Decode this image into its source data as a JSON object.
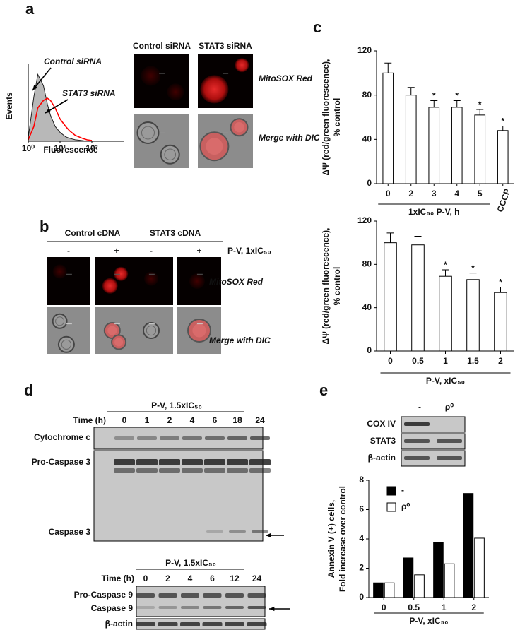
{
  "panel_labels": [
    "a",
    "b",
    "c",
    "d",
    "e"
  ],
  "panel_a": {
    "image_columns": [
      "Control siRNA",
      "STAT3 siRNA"
    ],
    "image_rows": [
      "MitoSOX Red",
      "Merge with DIC"
    ]
  },
  "panel_b": {
    "image_columns": [
      "Control cDNA",
      "STAT3 cDNA"
    ],
    "treatment_signs": [
      "-",
      "+",
      "-",
      "+"
    ],
    "treatment": "P-V, 1xIC₅₀",
    "image_rows": [
      "MitoSOX Red",
      "Merge with DIC"
    ]
  },
  "panel_d": {
    "blots": [
      {
        "treatment": "P-V, 1.5xIC₅₀",
        "time_label": "Time (h)",
        "times": [
          "0",
          "1",
          "2",
          "4",
          "6",
          "18",
          "24"
        ],
        "rows": [
          "Cytochrome c",
          "Pro-Caspase 3",
          "Caspase 3"
        ]
      },
      {
        "treatment": "P-V, 1.5xIC₅₀",
        "time_label": "Time (h)",
        "times": [
          "0",
          "2",
          "4",
          "6",
          "12",
          "24"
        ],
        "rows": [
          "Pro-Caspase 9",
          "Caspase 9",
          "β-actin"
        ]
      }
    ]
  },
  "panel_e": {
    "lanes": [
      "-",
      "ρ⁰"
    ],
    "rows": [
      "COX IV",
      "STAT3",
      "β-actin"
    ]
  },
  "chart_data": [
    {
      "type": "line",
      "xlabel": "Fluorescence",
      "ylabel": "Events",
      "xscale": "log",
      "x": [
        1,
        1.5,
        2,
        3,
        4,
        5,
        7,
        10,
        15,
        20,
        30,
        50,
        70,
        100
      ],
      "xlim": [
        1,
        1000
      ],
      "xticks": [
        {
          "value": 1,
          "label": "10⁰"
        },
        {
          "value": 10,
          "label": "10¹"
        },
        {
          "value": 100,
          "label": "10²"
        }
      ],
      "ylim": [
        0,
        100
      ],
      "series": [
        {
          "name": "Control siRNA",
          "color": "#b8b8b8",
          "fill": true,
          "values": [
            5,
            60,
            90,
            75,
            50,
            35,
            20,
            12,
            6,
            4,
            2,
            1,
            0,
            0
          ]
        },
        {
          "name": "STAT3 siRNA",
          "color": "#ff0000",
          "fill": false,
          "values": [
            2,
            20,
            45,
            55,
            58,
            55,
            45,
            30,
            20,
            14,
            8,
            4,
            2,
            1
          ]
        }
      ]
    },
    {
      "type": "bar",
      "ylabel": [
        "ΔΨ (red/green fluorescence),",
        "% control"
      ],
      "xlabel": "1xIC₅₀ P-V, h",
      "categories": [
        "0",
        "2",
        "3",
        "4",
        "5",
        "CCCP"
      ],
      "values": [
        100,
        80,
        69,
        69,
        62,
        48
      ],
      "errors": [
        9,
        7,
        6,
        6,
        5,
        4
      ],
      "significance": [
        null,
        null,
        "*",
        "*",
        "*",
        "*"
      ],
      "color": "#ffffff",
      "ylim": [
        0,
        120
      ],
      "yticks": [
        0,
        40,
        80,
        120
      ]
    },
    {
      "type": "bar",
      "ylabel": [
        "ΔΨ (red/green fluorescence),",
        "% control"
      ],
      "xlabel": "P-V, xIC₅₀",
      "categories": [
        "0",
        "0.5",
        "1",
        "1.5",
        "2"
      ],
      "values": [
        100,
        98,
        69,
        66,
        54
      ],
      "errors": [
        9,
        8,
        6,
        6,
        5
      ],
      "significance": [
        null,
        null,
        "*",
        "*",
        "*"
      ],
      "color": "#ffffff",
      "ylim": [
        0,
        120
      ],
      "yticks": [
        0,
        40,
        80,
        120
      ]
    },
    {
      "type": "grouped-bar",
      "ylabel": [
        "Annexin V (+) cells,",
        "Fold increase over control"
      ],
      "xlabel": "P-V, xIC₅₀",
      "categories": [
        "0",
        "0.5",
        "1",
        "2"
      ],
      "legend": "upper left",
      "series": [
        {
          "name": "-",
          "color": "#000000",
          "values": [
            1,
            2.7,
            3.75,
            7.1
          ]
        },
        {
          "name": "ρ⁰",
          "color": "#ffffff",
          "values": [
            1,
            1.55,
            2.3,
            4.05
          ]
        }
      ],
      "ylim": [
        0,
        8
      ],
      "yticks": [
        0,
        2,
        4,
        6,
        8
      ]
    }
  ]
}
